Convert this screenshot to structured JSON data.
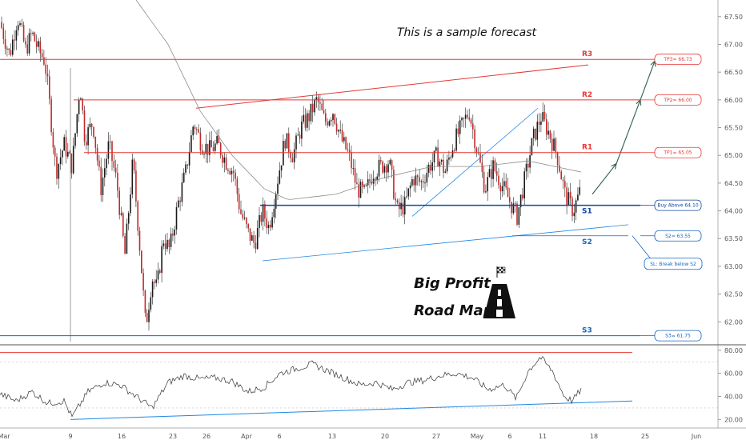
{
  "chart_data": {
    "type": "candlestick",
    "annotation": "This is a sample forecast",
    "brand": [
      "Big Profit",
      "Road Map"
    ],
    "x_tick_labels": [
      "Mar",
      "9",
      "16",
      "23",
      "26",
      "Apr",
      "6",
      "13",
      "20",
      "27",
      "May",
      "6",
      "11",
      "18",
      "25",
      "Jun"
    ],
    "price_axis": {
      "range": [
        61.6,
        67.8
      ],
      "ticks": [
        62.0,
        62.5,
        63.0,
        63.5,
        64.0,
        64.5,
        65.0,
        65.5,
        66.0,
        66.5,
        67.0,
        67.5
      ],
      "tick_labels": [
        "62.00",
        "62.50",
        "63.00",
        "63.50",
        "64.00",
        "64.50",
        "65.00",
        "65.50",
        "66.00",
        "66.50",
        "67.00",
        "67.50"
      ]
    },
    "rsi_axis": {
      "range": [
        14,
        84
      ],
      "ticks": [
        20,
        40,
        60,
        80
      ],
      "tick_labels": [
        "20.00",
        "40.00",
        "60.00",
        "80.00"
      ],
      "overbought": 70,
      "oversold": 30
    },
    "levels": [
      {
        "label": "R3",
        "price": 66.73,
        "color": "#e53935",
        "callout": "TP3= 66.73"
      },
      {
        "label": "R2",
        "price": 66.0,
        "color": "#e53935",
        "callout": "TP2= 66.00"
      },
      {
        "label": "R1",
        "price": 65.05,
        "color": "#e53935",
        "callout": "TP1= 65.05"
      },
      {
        "label": "S1",
        "price": 64.1,
        "color": "#0d47a1",
        "callout": "Buy Above 64.10"
      },
      {
        "label": "S2",
        "price": 63.55,
        "color": "#1565c0",
        "callout": "S2= 63.55"
      },
      {
        "label": "S3",
        "price": 61.75,
        "color": "#1565c0",
        "callout": "S3= 61.75"
      }
    ],
    "stop_loss_callout": "SL: Break below S2",
    "ohlc_series": {
      "anchors": [
        [
          0,
          67.4
        ],
        [
          12,
          66.8
        ],
        [
          22,
          67.5
        ],
        [
          32,
          66.9
        ],
        [
          40,
          67.2
        ],
        [
          48,
          66.9
        ],
        [
          56,
          66.7
        ],
        [
          60,
          66.2
        ],
        [
          70,
          64.7
        ],
        [
          80,
          65.2
        ],
        [
          90,
          64.8
        ],
        [
          100,
          66.3
        ],
        [
          106,
          65.3
        ],
        [
          116,
          65.6
        ],
        [
          126,
          64.4
        ],
        [
          136,
          65.2
        ],
        [
          146,
          64.5
        ],
        [
          156,
          63.2
        ],
        [
          166,
          64.9
        ],
        [
          176,
          63.1
        ],
        [
          182,
          61.9
        ],
        [
          190,
          62.8
        ],
        [
          196,
          62.6
        ],
        [
          204,
          63.5
        ],
        [
          212,
          63.3
        ],
        [
          222,
          64.1
        ],
        [
          232,
          64.7
        ],
        [
          242,
          65.6
        ],
        [
          252,
          65.2
        ],
        [
          262,
          65.1
        ],
        [
          272,
          65.2
        ],
        [
          282,
          64.9
        ],
        [
          292,
          64.7
        ],
        [
          300,
          64.0
        ],
        [
          310,
          63.6
        ],
        [
          318,
          63.4
        ],
        [
          328,
          64.0
        ],
        [
          336,
          63.7
        ],
        [
          346,
          64.5
        ],
        [
          356,
          65.3
        ],
        [
          366,
          65.0
        ],
        [
          376,
          65.5
        ],
        [
          386,
          65.7
        ],
        [
          396,
          66.0
        ],
        [
          406,
          65.6
        ],
        [
          416,
          65.8
        ],
        [
          426,
          65.3
        ],
        [
          436,
          65.0
        ],
        [
          446,
          64.4
        ],
        [
          456,
          64.3
        ],
        [
          466,
          64.7
        ],
        [
          476,
          64.8
        ],
        [
          486,
          64.9
        ],
        [
          496,
          64.0
        ],
        [
          506,
          64.1
        ],
        [
          516,
          64.6
        ],
        [
          526,
          64.5
        ],
        [
          536,
          64.8
        ],
        [
          546,
          65.0
        ],
        [
          556,
          64.7
        ],
        [
          566,
          65.2
        ],
        [
          576,
          65.5
        ],
        [
          586,
          65.8
        ],
        [
          596,
          65.1
        ],
        [
          606,
          64.4
        ],
        [
          616,
          64.8
        ],
        [
          626,
          64.5
        ],
        [
          636,
          64.2
        ],
        [
          646,
          63.9
        ],
        [
          656,
          64.6
        ],
        [
          666,
          65.3
        ],
        [
          676,
          65.7
        ],
        [
          686,
          65.4
        ],
        [
          696,
          65.0
        ],
        [
          706,
          64.3
        ],
        [
          716,
          64.0
        ],
        [
          726,
          64.4
        ]
      ]
    },
    "rsi_series": {
      "anchors": [
        [
          0,
          42
        ],
        [
          20,
          36
        ],
        [
          40,
          44
        ],
        [
          60,
          34
        ],
        [
          80,
          36
        ],
        [
          90,
          22
        ],
        [
          110,
          44
        ],
        [
          130,
          52
        ],
        [
          150,
          50
        ],
        [
          170,
          40
        ],
        [
          190,
          30
        ],
        [
          210,
          52
        ],
        [
          230,
          58
        ],
        [
          250,
          55
        ],
        [
          270,
          56
        ],
        [
          290,
          53
        ],
        [
          310,
          44
        ],
        [
          330,
          48
        ],
        [
          350,
          60
        ],
        [
          370,
          64
        ],
        [
          390,
          68
        ],
        [
          410,
          62
        ],
        [
          430,
          56
        ],
        [
          450,
          50
        ],
        [
          470,
          52
        ],
        [
          490,
          46
        ],
        [
          510,
          52
        ],
        [
          530,
          54
        ],
        [
          550,
          58
        ],
        [
          570,
          60
        ],
        [
          590,
          56
        ],
        [
          610,
          46
        ],
        [
          630,
          50
        ],
        [
          645,
          38
        ],
        [
          660,
          62
        ],
        [
          675,
          74
        ],
        [
          690,
          62
        ],
        [
          705,
          40
        ],
        [
          715,
          36
        ],
        [
          726,
          46
        ]
      ]
    }
  }
}
